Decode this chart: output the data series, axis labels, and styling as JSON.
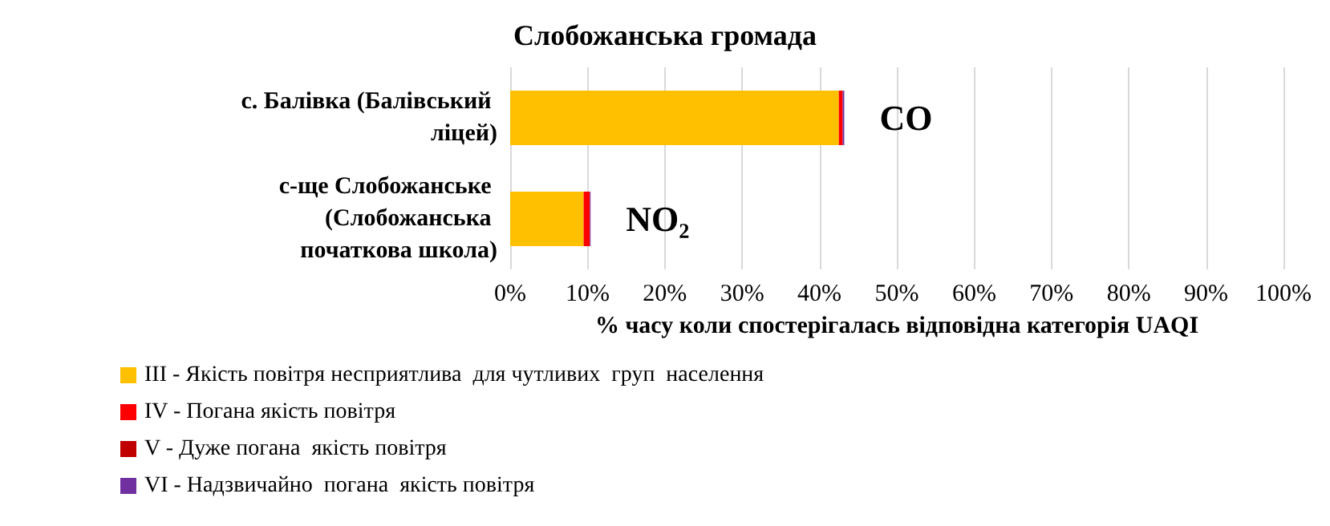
{
  "chart_data": {
    "type": "bar",
    "orientation": "horizontal",
    "stacked": true,
    "title": "Слобожанська громада",
    "xlabel": "% часу коли спостерігалась відповідна категорія UAQI",
    "categories": [
      "с. Балівка (Балівський ліцей)",
      "с-ще Слобожанське (Слобожанська початкова школа)"
    ],
    "series": [
      {
        "name": "III - Якість повітря несприятлива  для чутливих  груп  населення",
        "color": "#ffc000",
        "values": [
          42.5,
          9.5
        ]
      },
      {
        "name": "IV - Погана якість повітря",
        "color": "#ff0000",
        "values": [
          0.5,
          0.8
        ]
      },
      {
        "name": "V - Дуже погана  якість повітря",
        "color": "#c00000",
        "values": [
          0,
          0
        ]
      },
      {
        "name": "VI - Надзвичайно  погана  якість повітря",
        "color": "#7030a0",
        "values": [
          0.2,
          0.1
        ]
      }
    ],
    "xlim": [
      0,
      100
    ],
    "xticks": [
      {
        "value": 0,
        "label": "0%"
      },
      {
        "value": 10,
        "label": "10%"
      },
      {
        "value": 20,
        "label": "20%"
      },
      {
        "value": 30,
        "label": "30%"
      },
      {
        "value": 40,
        "label": "40%"
      },
      {
        "value": 50,
        "label": "50%"
      },
      {
        "value": 60,
        "label": "60%"
      },
      {
        "value": 70,
        "label": "70%"
      },
      {
        "value": 80,
        "label": "80%"
      },
      {
        "value": 90,
        "label": "90%"
      },
      {
        "value": 100,
        "label": "100%"
      }
    ],
    "annotations": [
      {
        "text": "CO",
        "x": 43.2,
        "y": "с. Балівка (Балівський ліцей)"
      },
      {
        "text": "NO₂",
        "x": 10.4,
        "y": "с-ще Слобожанське (Слобожанська початкова школа)"
      }
    ],
    "grid": "x",
    "legend": "bottom left"
  }
}
